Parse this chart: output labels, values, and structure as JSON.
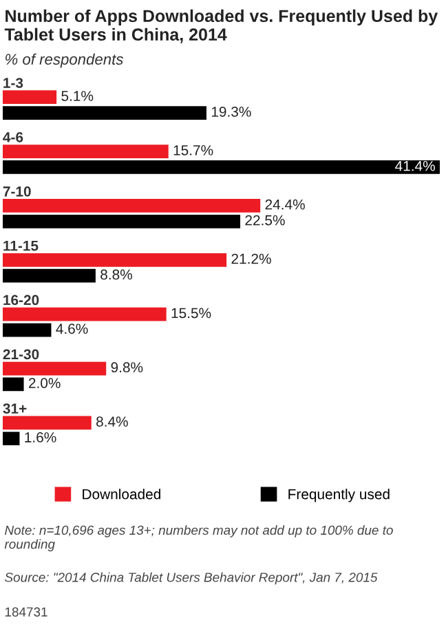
{
  "chart_data": {
    "type": "bar",
    "orientation": "horizontal",
    "title": "Number of Apps Downloaded vs. Frequently Used by Tablet Users in China, 2014",
    "subtitle": "% of respondents",
    "categories": [
      "1-3",
      "4-6",
      "7-10",
      "11-15",
      "16-20",
      "21-30",
      "31+"
    ],
    "series": [
      {
        "name": "Downloaded",
        "color": "#ed1c24",
        "values": [
          5.1,
          15.7,
          24.4,
          21.2,
          15.5,
          9.8,
          8.4
        ],
        "value_labels": [
          "5.1%",
          "15.7%",
          "24.4%",
          "21.2%",
          "15.5%",
          "9.8%",
          "8.4%"
        ]
      },
      {
        "name": "Frequently used",
        "color": "#000000",
        "values": [
          19.3,
          41.4,
          22.5,
          8.8,
          4.6,
          2.0,
          1.6
        ],
        "value_labels": [
          "19.3%",
          "41.4%",
          "22.5%",
          "8.8%",
          "4.6%",
          "2.0%",
          "1.6%"
        ]
      }
    ],
    "legend": "bottom",
    "annotations": [
      "Note: n=10,696 ages 13+; numbers may not add up to 100% due to rounding",
      "Source: \"2014 China Tablet Users Behavior Report\", Jan 7, 2015",
      "184731"
    ]
  }
}
